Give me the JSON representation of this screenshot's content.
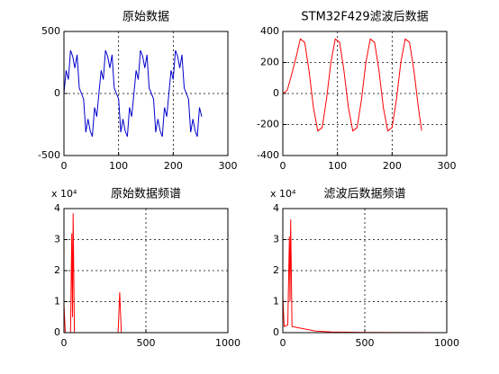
{
  "chart_data": [
    {
      "type": "line",
      "title": "原始数据",
      "color": "#0000cc",
      "grid": true,
      "xlim": [
        0,
        300
      ],
      "xticks": [
        0,
        100,
        200,
        300
      ],
      "ylim": [
        -500,
        500
      ],
      "yticks": [
        -500,
        0,
        500
      ],
      "x": [
        0,
        4,
        8,
        12,
        16,
        20,
        24,
        28,
        32,
        36,
        40,
        44,
        48,
        52,
        56,
        60,
        64,
        68,
        72,
        76,
        80,
        84,
        88,
        92,
        96,
        100,
        104,
        108,
        112,
        116,
        120,
        124,
        128,
        132,
        136,
        140,
        144,
        148,
        152,
        156,
        160,
        164,
        168,
        172,
        176,
        180,
        184,
        188,
        192,
        196,
        200,
        204,
        208,
        212,
        216,
        220,
        224,
        228,
        232,
        236,
        240,
        244,
        248,
        252
      ],
      "values": [
        0,
        186,
        112,
        348,
        300,
        206,
        312,
        44,
        0,
        -44,
        -312,
        -206,
        -300,
        -348,
        -112,
        -186,
        0,
        186,
        112,
        348,
        300,
        206,
        312,
        44,
        0,
        -44,
        -312,
        -206,
        -300,
        -348,
        -112,
        -186,
        0,
        186,
        112,
        348,
        300,
        206,
        312,
        44,
        0,
        -44,
        -312,
        -206,
        -300,
        -348,
        -112,
        -186,
        0,
        186,
        112,
        348,
        300,
        206,
        312,
        44,
        0,
        -44,
        -312,
        -206,
        -300,
        -348,
        -112,
        -186
      ]
    },
    {
      "type": "line",
      "title": "STM32F429滤波后数据",
      "color": "#ff0000",
      "grid": true,
      "xlim": [
        0,
        300
      ],
      "xticks": [
        0,
        100,
        200,
        300
      ],
      "ylim": [
        -400,
        400
      ],
      "yticks": [
        -400,
        -200,
        0,
        200,
        400
      ],
      "x": [
        0,
        8,
        16,
        24,
        32,
        40,
        48,
        56,
        64,
        72,
        80,
        88,
        96,
        104,
        112,
        120,
        128,
        136,
        144,
        152,
        160,
        168,
        176,
        184,
        192,
        200,
        208,
        216,
        224,
        232,
        240,
        248,
        254
      ],
      "values": [
        0,
        20,
        120,
        230,
        352,
        329,
        146,
        -91,
        -242,
        -219,
        -36,
        201,
        352,
        329,
        146,
        -91,
        -242,
        -219,
        -36,
        201,
        352,
        329,
        146,
        -91,
        -242,
        -219,
        -36,
        201,
        352,
        329,
        146,
        -91,
        -240
      ]
    },
    {
      "type": "line",
      "title": "原始数据频谱",
      "y_scale_label": "x 10⁴",
      "color": "#ff0000",
      "grid": true,
      "xlim": [
        0,
        1000
      ],
      "xticks": [
        0,
        500,
        1000
      ],
      "ylim": [
        0,
        4
      ],
      "yticks": [
        0,
        1,
        2,
        3,
        4
      ],
      "x": [
        0,
        8,
        40,
        48,
        52,
        56,
        64,
        330,
        340,
        350,
        1000
      ],
      "values": [
        0.9,
        0,
        0,
        3.2,
        0.5,
        3.85,
        0,
        0,
        1.3,
        0,
        0
      ]
    },
    {
      "type": "line",
      "title": "滤波后数据频谱",
      "y_scale_label": "x 10⁴",
      "color": "#ff0000",
      "grid": true,
      "xlim": [
        0,
        1000
      ],
      "xticks": [
        0,
        500,
        1000
      ],
      "ylim": [
        0,
        4
      ],
      "yticks": [
        0,
        1,
        2,
        3,
        4
      ],
      "x": [
        0,
        8,
        30,
        40,
        44,
        48,
        56,
        100,
        200,
        300,
        500,
        1000
      ],
      "values": [
        1.15,
        0.2,
        0.25,
        3.1,
        1.0,
        3.65,
        0.2,
        0.15,
        0.05,
        0.02,
        0.01,
        0
      ]
    }
  ]
}
